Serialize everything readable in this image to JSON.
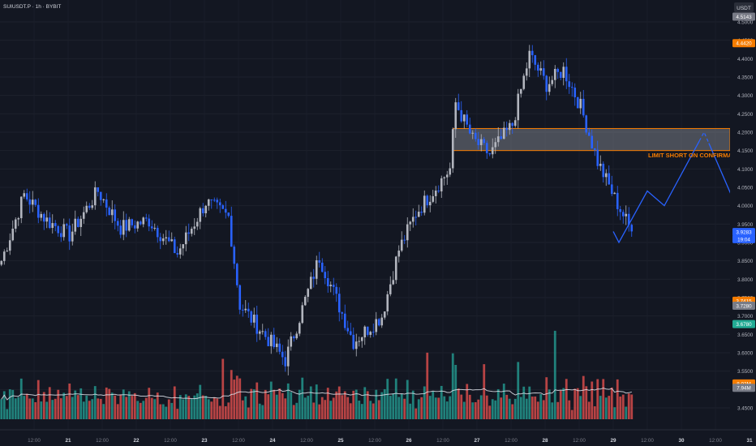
{
  "header": {
    "symbol": "SUIUSDT.P · 1h · BYBIT"
  },
  "price_axis": {
    "currency": "USDT",
    "ticks": [
      "4.5000",
      "4.4500",
      "4.4000",
      "4.3500",
      "4.3000",
      "4.2500",
      "4.2000",
      "4.1500",
      "4.1000",
      "4.0500",
      "4.0000",
      "3.9500",
      "3.9000",
      "3.8500",
      "3.8000",
      "3.7500",
      "3.7000",
      "3.6500",
      "3.6000",
      "3.5500",
      "3.5000",
      "3.4500"
    ],
    "badges": [
      {
        "text": "4.5143",
        "value": 4.5143,
        "color": "#787b86"
      },
      {
        "text": "4.4420",
        "value": 4.442,
        "color": "#f57c00"
      },
      {
        "text": "3.9283",
        "value": 3.9283,
        "color": "#2962ff"
      },
      {
        "text": "19:04",
        "value": 3.909,
        "color": "#2962ff"
      },
      {
        "text": "3.7415",
        "value": 3.7415,
        "color": "#f57c00"
      },
      {
        "text": "3.7280",
        "value": 3.728,
        "color": "#787b86"
      },
      {
        "text": "3.6780",
        "value": 3.678,
        "color": "#22ab94"
      },
      {
        "text": "8.02M",
        "value": 3.5165,
        "color": "#f57c00"
      },
      {
        "text": "7.94M",
        "value": 3.5045,
        "color": "#787b86"
      }
    ]
  },
  "time_axis": {
    "labels": [
      {
        "text": "12:00",
        "x": 12
      },
      {
        "text": "21",
        "x": 24
      },
      {
        "text": "12:00",
        "x": 36
      },
      {
        "text": "22",
        "x": 48
      },
      {
        "text": "12:00",
        "x": 60
      },
      {
        "text": "23",
        "x": 72
      },
      {
        "text": "12:00",
        "x": 84
      },
      {
        "text": "24",
        "x": 96
      },
      {
        "text": "12:00",
        "x": 108
      },
      {
        "text": "25",
        "x": 120
      },
      {
        "text": "12:00",
        "x": 132
      },
      {
        "text": "26",
        "x": 144
      },
      {
        "text": "12:00",
        "x": 156
      },
      {
        "text": "27",
        "x": 168
      },
      {
        "text": "12:00",
        "x": 180
      },
      {
        "text": "28",
        "x": 192
      },
      {
        "text": "12:00",
        "x": 204
      },
      {
        "text": "29",
        "x": 216
      },
      {
        "text": "12:00",
        "x": 228
      },
      {
        "text": "30",
        "x": 240
      },
      {
        "text": "12:00",
        "x": 252
      },
      {
        "text": "31",
        "x": 264
      }
    ]
  },
  "annotation": {
    "text": "LIMIT SHORT ON CONFIRMATION",
    "color": "#f57c00"
  },
  "colors": {
    "up": "#b2b5be",
    "down": "#2962ff",
    "vol_up": "#26a69a",
    "vol_down": "#ef5350",
    "zone": "#f57c00",
    "projection": "#2962ff"
  },
  "chart_data": {
    "type": "candlestick",
    "x_unit": "hours since first bar",
    "candles_summary": [
      {
        "x": 0,
        "y": 3.85
      },
      {
        "x": 8,
        "y": 4.03
      },
      {
        "x": 16,
        "y": 3.96
      },
      {
        "x": 24,
        "y": 3.92
      },
      {
        "x": 34,
        "y": 4.04
      },
      {
        "x": 42,
        "y": 3.94
      },
      {
        "x": 52,
        "y": 3.96
      },
      {
        "x": 62,
        "y": 3.87
      },
      {
        "x": 72,
        "y": 4.01
      },
      {
        "x": 80,
        "y": 3.97
      },
      {
        "x": 84,
        "y": 3.73
      },
      {
        "x": 100,
        "y": 3.58
      },
      {
        "x": 112,
        "y": 3.86
      },
      {
        "x": 124,
        "y": 3.63
      },
      {
        "x": 134,
        "y": 3.7
      },
      {
        "x": 140,
        "y": 3.88
      },
      {
        "x": 146,
        "y": 3.98
      },
      {
        "x": 158,
        "y": 4.1
      },
      {
        "x": 160,
        "y": 4.28
      },
      {
        "x": 166,
        "y": 4.18
      },
      {
        "x": 172,
        "y": 4.14
      },
      {
        "x": 180,
        "y": 4.22
      },
      {
        "x": 186,
        "y": 4.41
      },
      {
        "x": 192,
        "y": 4.33
      },
      {
        "x": 198,
        "y": 4.37
      },
      {
        "x": 204,
        "y": 4.27
      },
      {
        "x": 210,
        "y": 4.12
      },
      {
        "x": 216,
        "y": 4.02
      },
      {
        "x": 222,
        "y": 3.93
      }
    ],
    "zone": {
      "from_x": 160,
      "to_x": 276,
      "low": 4.15,
      "high": 4.21
    },
    "projection": [
      {
        "x": 216,
        "y": 3.93
      },
      {
        "x": 218,
        "y": 3.9
      },
      {
        "x": 228,
        "y": 4.04
      },
      {
        "x": 234,
        "y": 4.0
      },
      {
        "x": 248,
        "y": 4.2
      },
      {
        "x": 262,
        "y": 3.95
      }
    ],
    "ylim": [
      3.43,
      4.53
    ],
    "xlim": [
      0,
      280
    ]
  }
}
